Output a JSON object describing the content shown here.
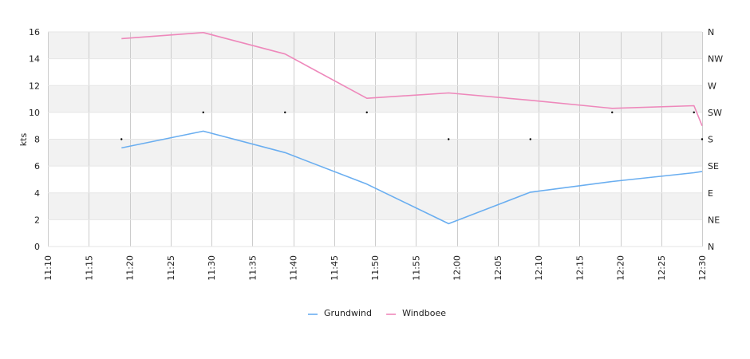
{
  "chart_data": {
    "type": "line",
    "ylabel": "kts",
    "ylim": [
      0,
      16
    ],
    "y_ticks": [
      "0",
      "2",
      "4",
      "6",
      "8",
      "10",
      "12",
      "14",
      "16"
    ],
    "y2_ticks": [
      "N",
      "NE",
      "E",
      "SE",
      "S",
      "SW",
      "W",
      "NW",
      "N"
    ],
    "x_ticks": [
      "11:10",
      "11:15",
      "11:20",
      "11:25",
      "11:30",
      "11:35",
      "11:40",
      "11:45",
      "11:50",
      "11:55",
      "12:00",
      "12:05",
      "12:10",
      "12:15",
      "12:20",
      "12:25",
      "12:30"
    ],
    "x_range": [
      "11:10",
      "12:30"
    ],
    "grid": true,
    "legend_position": "bottom-center",
    "series": [
      {
        "name": "Grundwind",
        "color": "#6aaef0",
        "x": [
          "11:19",
          "11:29",
          "11:39",
          "11:49",
          "11:59",
          "12:09",
          "12:19",
          "12:29",
          "12:30"
        ],
        "values": [
          7.35,
          8.6,
          7.0,
          4.65,
          1.7,
          4.05,
          4.85,
          5.5,
          5.6
        ]
      },
      {
        "name": "Windboee",
        "color": "#ee88bb",
        "x": [
          "11:19",
          "11:29",
          "11:39",
          "11:49",
          "11:59",
          "12:09",
          "12:19",
          "12:29",
          "12:30"
        ],
        "values": [
          15.5,
          15.95,
          14.35,
          11.05,
          11.45,
          10.9,
          10.3,
          10.5,
          9.0
        ]
      }
    ],
    "direction_points": {
      "x": [
        "11:19",
        "11:29",
        "11:39",
        "11:49",
        "11:59",
        "12:09",
        "12:19",
        "12:29",
        "12:30"
      ],
      "values": [
        "S",
        "SW",
        "SW",
        "SW",
        "S",
        "S",
        "SW",
        "SW",
        "S"
      ]
    },
    "colors": {
      "band": "#f2f2f2",
      "grid": "#cccccc",
      "marker": "#000000"
    }
  }
}
